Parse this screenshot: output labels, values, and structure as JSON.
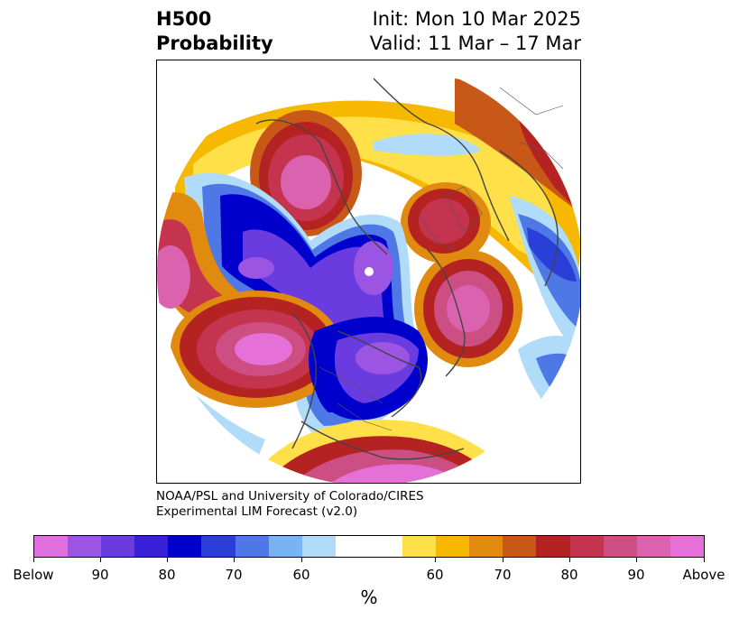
{
  "header": {
    "title_line1": "H500",
    "title_line2": "Probability",
    "init_label": "Init: Mon 10 Mar 2025",
    "valid_label": "Valid: 11 Mar – 17 Mar"
  },
  "credit": {
    "line1": "NOAA/PSL and University of Colorado/CIRES",
    "line2": "Experimental LIM Forecast (v2.0)"
  },
  "colorbar": {
    "colors": [
      "#e070e0",
      "#9c55e2",
      "#6a3ce0",
      "#3a1fd8",
      "#0000cc",
      "#2a3fd8",
      "#4d78e6",
      "#78b4f2",
      "#b0dcfa",
      "#ffffff",
      "#ffe048",
      "#f6b800",
      "#e08a10",
      "#c85818",
      "#b42222",
      "#c4344e",
      "#cc4e82",
      "#da62ae",
      "#e470d8"
    ],
    "tick_labels": [
      "Below",
      "90",
      "80",
      "70",
      "60",
      "60",
      "70",
      "80",
      "90",
      "Above"
    ],
    "unit": "%"
  }
}
